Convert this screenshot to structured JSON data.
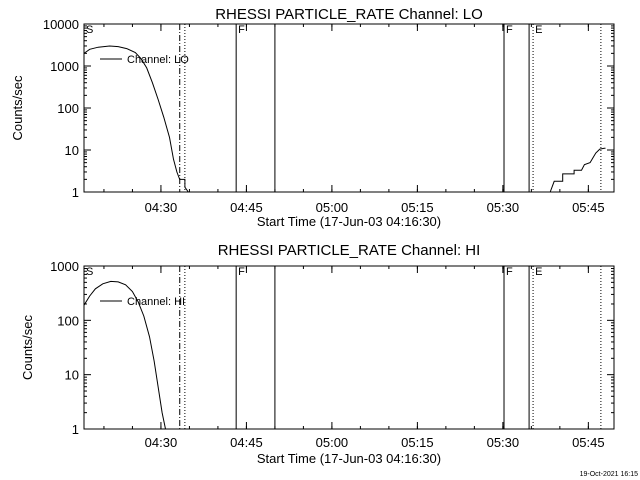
{
  "footer_timestamp": "19-Oct-2021 16:15",
  "chart_data": [
    {
      "type": "line",
      "title": "RHESSI PARTICLE_RATE Channel: LO",
      "xlabel": "Start Time (17-Jun-03 04:16:30)",
      "ylabel": "Counts/sec",
      "y_scale": "log",
      "xlim": [
        16.5,
        109.5
      ],
      "ylim": [
        1,
        10000
      ],
      "x_unit": "minutes after 04:00 UT",
      "x_ticks": [
        {
          "t": 30,
          "label": "04:30"
        },
        {
          "t": 45,
          "label": "04:45"
        },
        {
          "t": 60,
          "label": "05:00"
        },
        {
          "t": 75,
          "label": "05:15"
        },
        {
          "t": 90,
          "label": "05:30"
        },
        {
          "t": 105,
          "label": "05:45"
        }
      ],
      "y_ticks": [
        {
          "v": 1,
          "label": "1"
        },
        {
          "v": 10,
          "label": "10"
        },
        {
          "v": 100,
          "label": "100"
        },
        {
          "v": 1000,
          "label": "1000"
        },
        {
          "v": 10000,
          "label": "10000"
        }
      ],
      "legend": {
        "label": "Channel: LO",
        "location": "top-left"
      },
      "markers": [
        {
          "t": 16.5,
          "label": "S",
          "style": "solid"
        },
        {
          "t": 33.3,
          "label": "",
          "style": "dashdot"
        },
        {
          "t": 34.2,
          "label": "",
          "style": "dotted"
        },
        {
          "t": 43.2,
          "label": "F",
          "style": "solid"
        },
        {
          "t": 50.0,
          "label": "",
          "style": "solid"
        },
        {
          "t": 90.2,
          "label": "F",
          "style": "solid"
        },
        {
          "t": 94.6,
          "label": "",
          "style": "solid"
        },
        {
          "t": 95.3,
          "label": "E",
          "style": "dotted"
        },
        {
          "t": 107.2,
          "label": "",
          "style": "dotted"
        }
      ],
      "series": [
        {
          "name": "Channel: LO",
          "segments": [
            [
              [
                16.5,
                2000
              ],
              [
                17.5,
                2500
              ],
              [
                19,
                2800
              ],
              [
                21,
                3000
              ],
              [
                22.5,
                2900
              ],
              [
                24,
                2600
              ],
              [
                25.5,
                2100
              ],
              [
                26.5,
                1500
              ],
              [
                27.5,
                900
              ],
              [
                28.5,
                400
              ],
              [
                29.5,
                160
              ],
              [
                30.5,
                60
              ],
              [
                31.5,
                20
              ],
              [
                32.2,
                6
              ],
              [
                32.8,
                3
              ],
              [
                33.3,
                2
              ],
              [
                34.2,
                2
              ],
              [
                34.2,
                1.3
              ],
              [
                34.8,
                1
              ]
            ],
            [
              [
                98.3,
                1
              ],
              [
                99.0,
                1.8
              ],
              [
                100.5,
                1.8
              ],
              [
                100.5,
                2.7
              ],
              [
                102.5,
                2.7
              ],
              [
                102.5,
                3.3
              ],
              [
                103.8,
                3.3
              ],
              [
                104.3,
                4.5
              ],
              [
                105.3,
                5
              ],
              [
                105.8,
                6.5
              ],
              [
                106.3,
                8.5
              ],
              [
                107.0,
                10.5
              ],
              [
                107.8,
                11
              ],
              [
                108.0,
                11
              ]
            ]
          ]
        }
      ]
    },
    {
      "type": "line",
      "title": "RHESSI PARTICLE_RATE Channel: HI",
      "xlabel": "Start Time (17-Jun-03 04:16:30)",
      "ylabel": "Counts/sec",
      "y_scale": "log",
      "xlim": [
        16.5,
        109.5
      ],
      "ylim": [
        1,
        1000
      ],
      "x_unit": "minutes after 04:00 UT",
      "x_ticks": [
        {
          "t": 30,
          "label": "04:30"
        },
        {
          "t": 45,
          "label": "04:45"
        },
        {
          "t": 60,
          "label": "05:00"
        },
        {
          "t": 75,
          "label": "05:15"
        },
        {
          "t": 90,
          "label": "05:30"
        },
        {
          "t": 105,
          "label": "05:45"
        }
      ],
      "y_ticks": [
        {
          "v": 1,
          "label": "1"
        },
        {
          "v": 10,
          "label": "10"
        },
        {
          "v": 100,
          "label": "100"
        },
        {
          "v": 1000,
          "label": "1000"
        }
      ],
      "legend": {
        "label": "Channel: HI",
        "location": "top-left"
      },
      "markers": [
        {
          "t": 16.5,
          "label": "S",
          "style": "solid"
        },
        {
          "t": 33.3,
          "label": "",
          "style": "dashdot"
        },
        {
          "t": 34.2,
          "label": "",
          "style": "dotted"
        },
        {
          "t": 43.2,
          "label": "F",
          "style": "solid"
        },
        {
          "t": 50.0,
          "label": "",
          "style": "solid"
        },
        {
          "t": 90.2,
          "label": "F",
          "style": "solid"
        },
        {
          "t": 94.6,
          "label": "",
          "style": "solid"
        },
        {
          "t": 95.3,
          "label": "E",
          "style": "dotted"
        },
        {
          "t": 107.2,
          "label": "",
          "style": "dotted"
        }
      ],
      "series": [
        {
          "name": "Channel: HI",
          "segments": [
            [
              [
                16.5,
                190
              ],
              [
                17.5,
                280
              ],
              [
                18.5,
                380
              ],
              [
                19.8,
                470
              ],
              [
                21.2,
                520
              ],
              [
                22.5,
                510
              ],
              [
                23.8,
                450
              ],
              [
                25,
                340
              ],
              [
                26,
                220
              ],
              [
                27,
                120
              ],
              [
                28,
                50
              ],
              [
                28.8,
                18
              ],
              [
                29.5,
                6
              ],
              [
                30.2,
                2
              ],
              [
                30.8,
                1
              ]
            ]
          ]
        }
      ]
    }
  ]
}
